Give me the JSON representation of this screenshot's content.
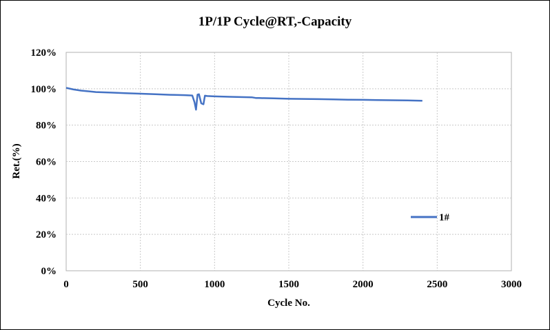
{
  "chart_data": {
    "type": "line",
    "title": "1P/1P Cycle@RT,-Capacity",
    "xlabel": "Cycle No.",
    "ylabel": "Ret.(%)",
    "xlim": [
      0,
      3000
    ],
    "ylim": [
      0,
      120
    ],
    "x_ticks": [
      "0",
      "500",
      "1000",
      "1500",
      "2000",
      "2500",
      "3000"
    ],
    "y_ticks": [
      "0%",
      "20%",
      "40%",
      "60%",
      "80%",
      "100%",
      "120%"
    ],
    "grid": true,
    "legend_position": "right",
    "series": [
      {
        "name": "1#",
        "color": "#4472C4",
        "x": [
          0,
          50,
          100,
          200,
          300,
          400,
          500,
          600,
          700,
          800,
          850,
          865,
          875,
          885,
          895,
          910,
          925,
          935,
          950,
          1000,
          1100,
          1200,
          1250,
          1280,
          1300,
          1400,
          1500,
          1600,
          1700,
          1800,
          1900,
          2000,
          2100,
          2200,
          2300,
          2400
        ],
        "y": [
          100.5,
          99.6,
          99.0,
          98.2,
          97.9,
          97.6,
          97.3,
          97.0,
          96.7,
          96.5,
          96.3,
          92.5,
          88.5,
          96.8,
          97.0,
          92.0,
          91.5,
          96.2,
          96.0,
          95.8,
          95.6,
          95.4,
          95.3,
          94.9,
          94.9,
          94.7,
          94.5,
          94.4,
          94.3,
          94.2,
          94.0,
          93.9,
          93.8,
          93.7,
          93.6,
          93.4
        ]
      }
    ]
  }
}
